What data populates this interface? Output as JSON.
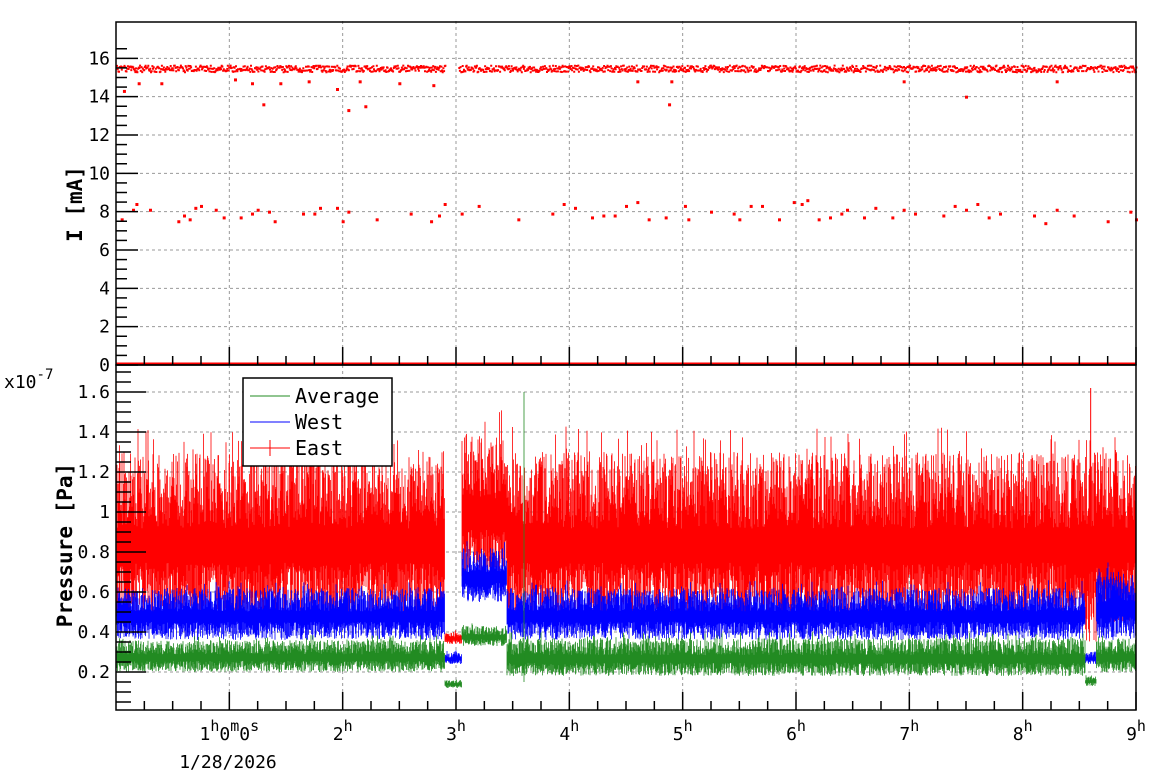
{
  "chart_data": [
    {
      "type": "scatter",
      "ylabel": "I [mA]",
      "xlim_hours": [
        0,
        9
      ],
      "ylim": [
        0,
        16.8
      ],
      "yticks": [
        0,
        2,
        4,
        6,
        8,
        10,
        12,
        14,
        16
      ],
      "grid": true,
      "color": "#ff0000",
      "series": [
        {
          "main_level": 15.5,
          "main_segments_hours": [
            [
              0,
              2.9
            ],
            [
              3.02,
              9
            ]
          ],
          "dip_points": [
            [
              0.07,
              14.3
            ],
            [
              0.2,
              14.7
            ],
            [
              0.4,
              14.7
            ],
            [
              1.05,
              14.9
            ],
            [
              1.2,
              14.7
            ],
            [
              1.3,
              13.6
            ],
            [
              1.45,
              14.7
            ],
            [
              1.7,
              14.8
            ],
            [
              1.95,
              14.4
            ],
            [
              2.05,
              13.3
            ],
            [
              2.15,
              14.8
            ],
            [
              2.2,
              13.5
            ],
            [
              2.5,
              14.7
            ],
            [
              2.8,
              14.6
            ],
            [
              4.6,
              14.8
            ],
            [
              4.88,
              13.6
            ],
            [
              4.9,
              14.8
            ],
            [
              6.95,
              14.8
            ],
            [
              7.5,
              14.0
            ],
            [
              8.3,
              14.8
            ]
          ],
          "low_points": [
            [
              0.05,
              7.6
            ],
            [
              0.15,
              8.1
            ],
            [
              0.18,
              8.4
            ],
            [
              0.3,
              8.1
            ],
            [
              0.55,
              7.5
            ],
            [
              0.6,
              7.8
            ],
            [
              0.65,
              7.6
            ],
            [
              0.7,
              8.2
            ],
            [
              0.75,
              8.3
            ],
            [
              0.88,
              8.1
            ],
            [
              0.95,
              7.7
            ],
            [
              1.1,
              7.7
            ],
            [
              1.2,
              7.9
            ],
            [
              1.25,
              8.1
            ],
            [
              1.35,
              8.0
            ],
            [
              1.4,
              7.5
            ],
            [
              1.65,
              7.9
            ],
            [
              1.75,
              7.9
            ],
            [
              1.8,
              8.2
            ],
            [
              1.95,
              8.2
            ],
            [
              2.0,
              7.5
            ],
            [
              2.05,
              8.0
            ],
            [
              2.3,
              7.6
            ],
            [
              2.6,
              7.9
            ],
            [
              2.78,
              7.5
            ],
            [
              2.85,
              7.8
            ],
            [
              2.9,
              8.4
            ],
            [
              3.05,
              7.9
            ],
            [
              3.2,
              8.3
            ],
            [
              3.55,
              7.6
            ],
            [
              3.85,
              7.9
            ],
            [
              3.95,
              8.4
            ],
            [
              4.05,
              8.2
            ],
            [
              4.2,
              7.7
            ],
            [
              4.3,
              7.8
            ],
            [
              4.4,
              7.8
            ],
            [
              4.5,
              8.3
            ],
            [
              4.6,
              8.5
            ],
            [
              4.7,
              7.6
            ],
            [
              4.85,
              7.7
            ],
            [
              5.02,
              8.3
            ],
            [
              5.05,
              7.6
            ],
            [
              5.25,
              8.0
            ],
            [
              5.45,
              7.9
            ],
            [
              5.5,
              7.6
            ],
            [
              5.6,
              8.3
            ],
            [
              5.7,
              8.3
            ],
            [
              5.85,
              7.6
            ],
            [
              5.98,
              8.5
            ],
            [
              6.05,
              8.4
            ],
            [
              6.1,
              8.6
            ],
            [
              6.2,
              7.6
            ],
            [
              6.3,
              7.7
            ],
            [
              6.4,
              7.9
            ],
            [
              6.45,
              8.1
            ],
            [
              6.6,
              7.7
            ],
            [
              6.7,
              8.2
            ],
            [
              6.85,
              7.7
            ],
            [
              6.95,
              8.1
            ],
            [
              7.05,
              7.9
            ],
            [
              7.3,
              7.8
            ],
            [
              7.4,
              8.3
            ],
            [
              7.5,
              8.1
            ],
            [
              7.6,
              8.4
            ],
            [
              7.7,
              7.7
            ],
            [
              7.8,
              7.9
            ],
            [
              8.1,
              7.8
            ],
            [
              8.2,
              7.4
            ],
            [
              8.3,
              8.1
            ],
            [
              8.45,
              7.8
            ],
            [
              8.75,
              7.5
            ],
            [
              8.95,
              8.0
            ],
            [
              9.0,
              7.6
            ]
          ],
          "zero_level": 0
        }
      ]
    },
    {
      "type": "line",
      "ylabel": "Pressure [Pa]",
      "y_multiplier": "x10",
      "y_multiplier_exp": "-7",
      "xlim_hours": [
        0,
        9
      ],
      "ylim": [
        0.01,
        1.735
      ],
      "yticks": [
        0.2,
        0.4,
        0.6,
        0.8,
        1,
        1.2,
        1.4,
        1.6
      ],
      "ytick_labels": [
        "0.2",
        "0.4",
        "0.6",
        "0.8",
        "1",
        "1.2",
        "1.4",
        "1.6"
      ],
      "grid": true,
      "legend_placement": "top-left",
      "series": [
        {
          "name": "Average",
          "color": "#228b22",
          "segments": [
            [
              0,
              2.9,
              0.2,
              0.36
            ],
            [
              2.9,
              3.05,
              0.12,
              0.16
            ],
            [
              3.05,
              3.45,
              0.33,
              0.43
            ],
            [
              3.45,
              8.55,
              0.18,
              0.37
            ],
            [
              8.55,
              8.65,
              0.13,
              0.18
            ],
            [
              8.65,
              9,
              0.2,
              0.36
            ]
          ]
        },
        {
          "name": "West",
          "color": "#0000ff",
          "segments": [
            [
              0,
              2.9,
              0.36,
              0.62
            ],
            [
              2.9,
              3.05,
              0.24,
              0.3
            ],
            [
              3.05,
              3.45,
              0.55,
              0.82
            ],
            [
              3.45,
              8.55,
              0.36,
              0.62
            ],
            [
              8.55,
              8.65,
              0.24,
              0.3
            ],
            [
              8.65,
              9,
              0.36,
              0.7
            ]
          ]
        },
        {
          "name": "East",
          "color": "#ff0000",
          "segments": [
            [
              0,
              2.9,
              0.45,
              1.3
            ],
            [
              2.9,
              3.05,
              0.34,
              0.4
            ],
            [
              3.05,
              3.45,
              0.65,
              1.4
            ],
            [
              3.45,
              8.55,
              0.45,
              1.3
            ],
            [
              8.55,
              8.65,
              0.35,
              1.38
            ],
            [
              8.65,
              9,
              0.45,
              1.3
            ]
          ]
        }
      ]
    }
  ],
  "x_axis": {
    "tick_labels": [
      "1h0m0s",
      "2h",
      "3h",
      "4h",
      "5h",
      "6h",
      "7h",
      "8h",
      "9h"
    ],
    "tick_hours": [
      1,
      2,
      3,
      4,
      5,
      6,
      7,
      8,
      9
    ],
    "date_label": "1/28/2026"
  }
}
